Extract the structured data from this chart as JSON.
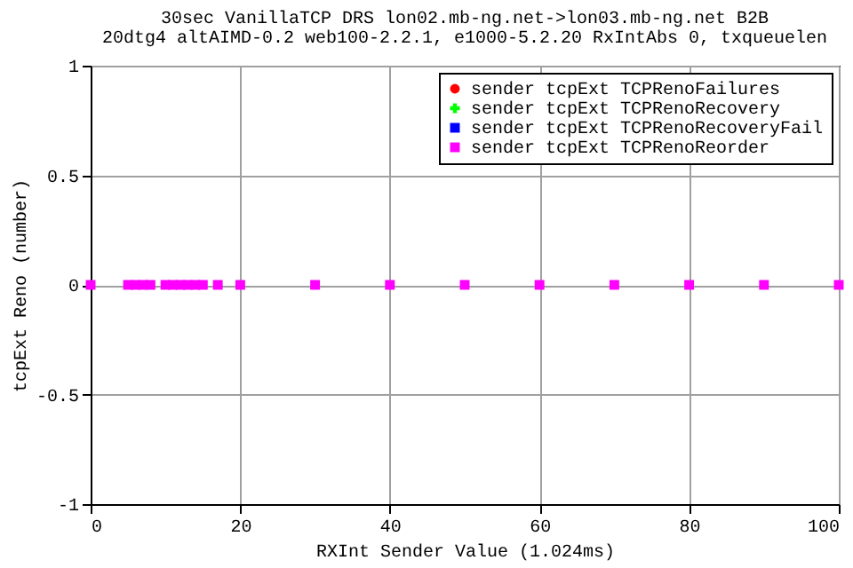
{
  "chart_data": {
    "type": "scatter",
    "title": "30sec VanillaTCP DRS lon02.mb-ng.net->lon03.mb-ng.net B2B",
    "subtitle": "20dtg4 altAIMD-0.2 web100-2.2.1, e1000-5.2.20 RxIntAbs 0, txqueuelen",
    "xlabel": "RXInt Sender Value (1.024ms)",
    "ylabel": "tcpExt Reno (number)",
    "x": [
      0,
      5,
      6,
      7,
      8,
      10,
      11,
      12,
      13,
      14,
      15,
      17,
      20,
      30,
      40,
      50,
      60,
      70,
      80,
      90,
      100
    ],
    "series": [
      {
        "name": "sender tcpExt TCPRenoFailures",
        "color": "#ff0000",
        "marker": "circle",
        "values": [
          null,
          null,
          null,
          null,
          null,
          null,
          null,
          null,
          null,
          null,
          null,
          null,
          null,
          null,
          null,
          null,
          null,
          null,
          null,
          null,
          null
        ]
      },
      {
        "name": "sender tcpExt TCPRenoRecovery",
        "color": "#00ff00",
        "marker": "cross",
        "values": [
          null,
          null,
          null,
          null,
          null,
          null,
          null,
          null,
          null,
          null,
          null,
          null,
          null,
          null,
          null,
          null,
          null,
          null,
          null,
          null,
          null
        ]
      },
      {
        "name": "sender tcpExt TCPRenoRecoveryFail",
        "color": "#0000ff",
        "marker": "square",
        "values": [
          null,
          null,
          null,
          null,
          null,
          null,
          null,
          null,
          null,
          null,
          null,
          null,
          null,
          null,
          null,
          null,
          null,
          null,
          null,
          null,
          null
        ]
      },
      {
        "name": "sender tcpExt TCPRenoReorder",
        "color": "#ff00ff",
        "marker": "square",
        "values": [
          0,
          0,
          0,
          0,
          0,
          0,
          0,
          0,
          0,
          0,
          0,
          0,
          0,
          0,
          0,
          0,
          0,
          0,
          0,
          0,
          0
        ]
      }
    ],
    "xlim": [
      0,
      100
    ],
    "xticks": [
      0,
      20,
      40,
      60,
      80,
      100
    ],
    "ylim": [
      -1,
      1
    ],
    "yticks": [
      -1,
      -0.5,
      0,
      0.5,
      1
    ],
    "grid": true,
    "legend": "top right"
  }
}
